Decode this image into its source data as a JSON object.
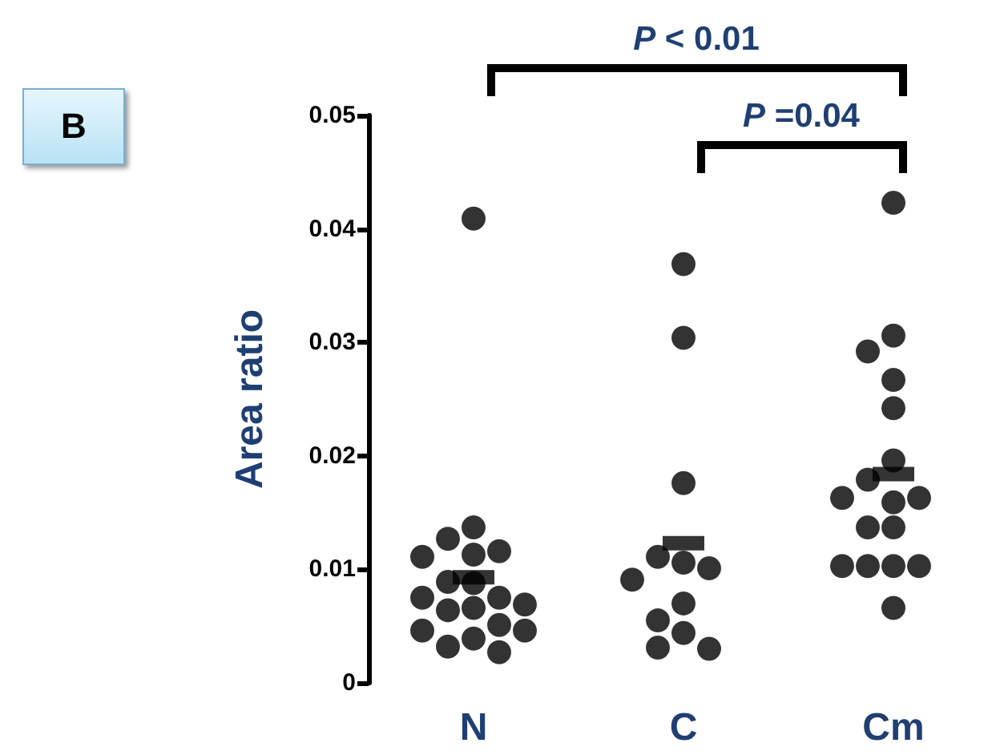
{
  "chart_data": {
    "type": "scatter",
    "ylabel": "Area ratio",
    "categories": [
      "N",
      "C",
      "Cm"
    ],
    "series": [
      {
        "color": "#000000",
        "marker": "circle",
        "x": [
          "N",
          "N",
          "N",
          "N",
          "N",
          "N",
          "N",
          "N",
          "N",
          "N",
          "N",
          "N",
          "N",
          "N",
          "N",
          "N",
          "N",
          "N",
          "N"
        ],
        "values": [
          0.0409,
          0.0137,
          0.0127,
          0.0113,
          0.0116,
          0.0111,
          0.0088,
          0.0089,
          0.0075,
          0.0075,
          0.0069,
          0.0066,
          0.0064,
          0.0051,
          0.0046,
          0.0046,
          0.0039,
          0.0032,
          0.0027
        ]
      },
      {
        "color": "#000000",
        "marker": "circle",
        "x": [
          "C",
          "C",
          "C",
          "C",
          "C",
          "C",
          "C",
          "C",
          "C",
          "C",
          "C",
          "C"
        ],
        "values": [
          0.0369,
          0.0304,
          0.0176,
          0.0106,
          0.0111,
          0.0101,
          0.0091,
          0.007,
          0.0055,
          0.0044,
          0.0031,
          0.003
        ]
      },
      {
        "color": "#000000",
        "marker": "circle",
        "x": [
          "Cm",
          "Cm",
          "Cm",
          "Cm",
          "Cm",
          "Cm",
          "Cm",
          "Cm",
          "Cm",
          "Cm",
          "Cm",
          "Cm",
          "Cm",
          "Cm",
          "Cm",
          "Cm",
          "Cm"
        ],
        "values": [
          0.0423,
          0.0306,
          0.0292,
          0.0267,
          0.0242,
          0.0196,
          0.0179,
          0.0159,
          0.0163,
          0.0163,
          0.0137,
          0.0137,
          0.0103,
          0.0103,
          0.0103,
          0.0103,
          0.0066
        ]
      },
      {
        "color": "#000000",
        "marker": "square",
        "x": [
          "N",
          "C",
          "Cm"
        ],
        "values": [
          0.0093,
          0.0123,
          0.0184
        ]
      }
    ],
    "ylim": [
      0,
      0.05
    ],
    "yticks": [
      0,
      0.01,
      0.02,
      0.03,
      0.04,
      0.05
    ],
    "grid": false,
    "annotations": [
      "B",
      "P < 0.01",
      "P =0.04"
    ]
  }
}
